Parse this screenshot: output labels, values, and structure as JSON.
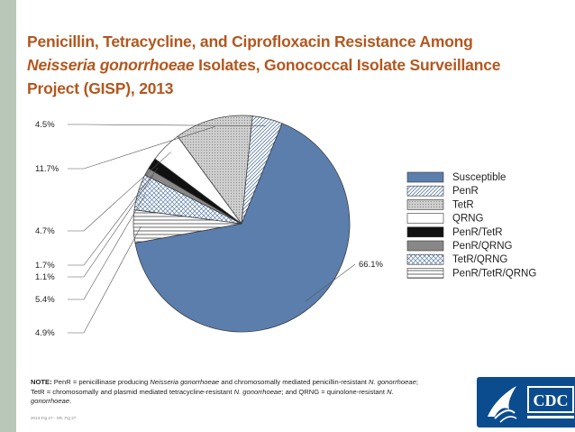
{
  "title": {
    "line1": "Penicillin, Tetracycline, and Ciprofloxacin Resistance Among",
    "line2_italic": "Neisseria gonorrhoeae",
    "line2_rest": " Isolates, Gonococcal Isolate Surveillance",
    "line3": "Project (GISP), 2013"
  },
  "chart_data": {
    "type": "pie",
    "slices": [
      {
        "label": "Susceptible",
        "value": 66.1,
        "value_label": "66.1%",
        "color": "#5b7eac",
        "pattern": "solid"
      },
      {
        "label": "PenR",
        "value": 4.9,
        "value_label": "4.9%",
        "color": "#ffffff",
        "pattern": "horizontal-lines"
      },
      {
        "label": "TetR",
        "value": 5.4,
        "value_label": "5.4%",
        "color": "#ffffff",
        "pattern": "diamond-cross"
      },
      {
        "label": "QRNG",
        "value": 1.1,
        "value_label": "1.1%",
        "color": "#888888",
        "pattern": "solid"
      },
      {
        "label": "PenR/TetR",
        "value": 1.7,
        "value_label": "1.7%",
        "color": "#111111",
        "pattern": "solid"
      },
      {
        "label": "PenR/QRNG",
        "value": 4.7,
        "value_label": "4.7%",
        "color": "#ffffff",
        "pattern": "solid"
      },
      {
        "label": "TetR/QRNG",
        "value": 11.7,
        "value_label": "11.7%",
        "color": "#c8c8c8",
        "pattern": "dots"
      },
      {
        "label": "PenR/TetR/QRNG",
        "value": 4.5,
        "value_label": "4.5%",
        "color": "#ffffff",
        "pattern": "diagonal-lines"
      }
    ],
    "legend": {
      "placement": "right",
      "entries": [
        {
          "label": "Susceptible",
          "color": "#5b7eac",
          "pattern": "solid"
        },
        {
          "label": "PenR",
          "color": "#ffffff",
          "pattern": "diagonal-lines"
        },
        {
          "label": "TetR",
          "color": "#c8c8c8",
          "pattern": "dots"
        },
        {
          "label": "QRNG",
          "color": "#ffffff",
          "pattern": "solid"
        },
        {
          "label": "PenR/TetR",
          "color": "#111111",
          "pattern": "solid"
        },
        {
          "label": "PenR/QRNG",
          "color": "#888888",
          "pattern": "solid"
        },
        {
          "label": "TetR/QRNG",
          "color": "#ffffff",
          "pattern": "diamond-cross"
        },
        {
          "label": "PenR/TetR/QRNG",
          "color": "#ffffff",
          "pattern": "horizontal-lines"
        }
      ]
    }
  },
  "note": {
    "label": "NOTE:",
    "t1": " PenR = penicillinase producing ",
    "i1": "Neisseria gonorrhoeae",
    "t2": " and chromosomally mediated penicillin-resistant ",
    "i2": "N. gonorrhoeae",
    "t3": "; TetR = chromosomally and plasmid mediated tetracycline-resistant ",
    "i3": "N. gonorrhoeae",
    "t4": "; and QRNG = quinolone-resistant ",
    "i4": "N. gonorrhoeae",
    "t5": "."
  },
  "footer": "2013-Fig 27 - SR, Fig 27",
  "logo": {
    "text": "CDC",
    "colors": {
      "background": "#0b4c8f",
      "accent": "#ffffff"
    }
  }
}
